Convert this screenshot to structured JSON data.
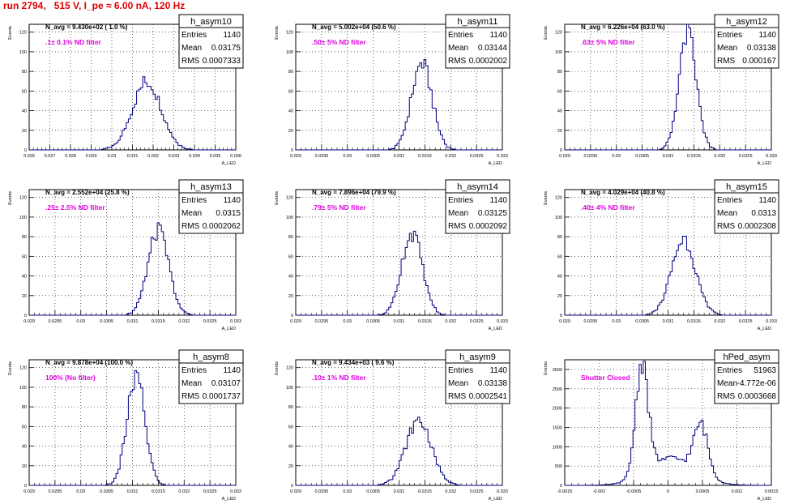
{
  "page_title": "run 2794,   515 V, I_pe ≈ 6.00 nA, 120 Hz",
  "colors": {
    "title": "#e00000",
    "histogram": "#000080",
    "annotation": "#e000e0",
    "grid": "#000000"
  },
  "chart_data": [
    {
      "type": "histogram",
      "name": "h_asym10",
      "stats": {
        "entries": "1140",
        "mean": "0.03175",
        "rms": "0.0007333"
      },
      "navg": "N_avg = 9.430e+02 ( 1.0 %)",
      "label": ".1± 0.1% ND filter",
      "xlabel": "A_LED",
      "ylabel": "Events",
      "xticks": [
        "0.026",
        "0.027",
        "0.028",
        "0.029",
        "0.03",
        "0.031",
        "0.032",
        "0.033",
        "0.034",
        "0.035",
        "0.036"
      ],
      "yticks": [
        "0",
        "20",
        "40",
        "60",
        "80",
        "100",
        "120"
      ],
      "xlim": [
        0.026,
        0.036
      ],
      "ylim": [
        0,
        128
      ],
      "peak": {
        "center": 0.0317,
        "sigma": 0.0007,
        "height": 70
      }
    },
    {
      "type": "histogram",
      "name": "h_asym11",
      "stats": {
        "entries": "1140",
        "mean": "0.03144",
        "rms": "0.0002002"
      },
      "navg": "N_avg = 5.002e+04 (50.6 %)",
      "label": ".50± 5% ND filter",
      "xlabel": "A_LED",
      "ylabel": "Events",
      "xticks": [
        "0.029",
        "0.0295",
        "0.03",
        "0.0305",
        "0.031",
        "0.0315",
        "0.032",
        "0.0325",
        "0.033"
      ],
      "yticks": [
        "0",
        "20",
        "40",
        "60",
        "80",
        "100",
        "120"
      ],
      "xlim": [
        0.029,
        0.033
      ],
      "ylim": [
        0,
        128
      ],
      "peak": {
        "center": 0.03144,
        "sigma": 0.0002,
        "height": 88
      }
    },
    {
      "type": "histogram",
      "name": "h_asym12",
      "stats": {
        "entries": "1140",
        "mean": "0.03138",
        "rms": "0.000167"
      },
      "navg": "N_avg = 6.226e+04 (63.0 %)",
      "label": ".63± 5% ND filter",
      "xlabel": "A_LED",
      "ylabel": "Events",
      "xticks": [
        "0.029",
        "0.0295",
        "0.03",
        "0.0305",
        "0.031",
        "0.0315",
        "0.032",
        "0.0325",
        "0.033"
      ],
      "yticks": [
        "0",
        "20",
        "40",
        "60",
        "80",
        "100",
        "120"
      ],
      "xlim": [
        0.029,
        0.033
      ],
      "ylim": [
        0,
        128
      ],
      "peak": {
        "center": 0.03138,
        "sigma": 0.000167,
        "height": 118
      }
    },
    {
      "type": "histogram",
      "name": "h_asym13",
      "stats": {
        "entries": "1140",
        "mean": "0.0315",
        "rms": "0.0002062"
      },
      "navg": "N_avg = 2.552e+04 (25.8 %)",
      "label": ".25± 2.5% ND filter",
      "xlabel": "A_LED",
      "ylabel": "Events",
      "xticks": [
        "0.029",
        "0.0295",
        "0.03",
        "0.0305",
        "0.031",
        "0.0315",
        "0.032",
        "0.0325",
        "0.033"
      ],
      "yticks": [
        "0",
        "20",
        "40",
        "60",
        "80",
        "100",
        "120"
      ],
      "xlim": [
        0.029,
        0.033
      ],
      "ylim": [
        0,
        128
      ],
      "peak": {
        "center": 0.0315,
        "sigma": 0.0002,
        "height": 86
      }
    },
    {
      "type": "histogram",
      "name": "h_asym14",
      "stats": {
        "entries": "1140",
        "mean": "0.03125",
        "rms": "0.0002092"
      },
      "navg": "N_avg = 7.896e+04 (79.9 %)",
      "label": ".79± 5% ND filter",
      "xlabel": "A_LED",
      "ylabel": "Events",
      "xticks": [
        "0.029",
        "0.0295",
        "0.03",
        "0.0305",
        "0.031",
        "0.0315",
        "0.032",
        "0.0325",
        "0.033"
      ],
      "yticks": [
        "0",
        "20",
        "40",
        "60",
        "80",
        "100",
        "120"
      ],
      "xlim": [
        0.029,
        0.033
      ],
      "ylim": [
        0,
        128
      ],
      "peak": {
        "center": 0.03125,
        "sigma": 0.0002,
        "height": 84
      }
    },
    {
      "type": "histogram",
      "name": "h_asym15",
      "stats": {
        "entries": "1140",
        "mean": "0.0313",
        "rms": "0.0002308"
      },
      "navg": "N_avg = 4.029e+04 (40.8 %)",
      "label": ".40± 4% ND filter",
      "xlabel": "A_LED",
      "ylabel": "Events",
      "xticks": [
        "0.029",
        "0.0295",
        "0.03",
        "0.0305",
        "0.031",
        "0.0315",
        "0.032",
        "0.0325",
        "0.033"
      ],
      "yticks": [
        "0",
        "20",
        "40",
        "60",
        "80",
        "100",
        "120"
      ],
      "xlim": [
        0.029,
        0.033
      ],
      "ylim": [
        0,
        128
      ],
      "peak": {
        "center": 0.0313,
        "sigma": 0.00023,
        "height": 78
      }
    },
    {
      "type": "histogram",
      "name": "h_asym8",
      "stats": {
        "entries": "1140",
        "mean": "0.03107",
        "rms": "0.0001737"
      },
      "navg": "N_avg = 9.878e+04 (100.0 %)",
      "label": "100% (No filter)",
      "xlabel": "A_LED",
      "ylabel": "Events",
      "xticks": [
        "0.029",
        "0.0295",
        "0.03",
        "0.0305",
        "0.031",
        "0.0315",
        "0.032",
        "0.0325",
        "0.033"
      ],
      "yticks": [
        "0",
        "20",
        "40",
        "60",
        "80",
        "100",
        "120"
      ],
      "xlim": [
        0.029,
        0.033
      ],
      "ylim": [
        0,
        128
      ],
      "peak": {
        "center": 0.03107,
        "sigma": 0.000174,
        "height": 110
      }
    },
    {
      "type": "histogram",
      "name": "h_asym9",
      "stats": {
        "entries": "1140",
        "mean": "0.03138",
        "rms": "0.0002541"
      },
      "navg": "N_avg = 9.434e+03 ( 9.6 %)",
      "label": ".10± 1% ND filter",
      "xlabel": "A_LED",
      "ylabel": "Events",
      "xticks": [
        "0.029",
        "0.0295",
        "0.03",
        "0.0305",
        "0.031",
        "0.0315",
        "0.032",
        "0.0325",
        "0.033"
      ],
      "yticks": [
        "0",
        "20",
        "40",
        "60",
        "80",
        "100",
        "120"
      ],
      "xlim": [
        0.029,
        0.033
      ],
      "ylim": [
        0,
        128
      ],
      "peak": {
        "center": 0.03138,
        "sigma": 0.00025,
        "height": 66
      }
    },
    {
      "type": "histogram",
      "name": "hPed_asym",
      "stats": {
        "entries": "51963",
        "mean": "-4.772e-06",
        "rms": "0.0003668"
      },
      "navg": "",
      "label": "Shutter Closed",
      "xlabel": "A_LED",
      "ylabel": "Events",
      "xticks": [
        "-0.0015",
        "-0.001",
        "-0.0005",
        "0",
        "0.0005",
        "0.001",
        "0.0015"
      ],
      "yticks": [
        "0",
        "500",
        "1000",
        "1500",
        "2000",
        "2500",
        "3000"
      ],
      "xlim": [
        -0.0015,
        0.0015
      ],
      "ylim": [
        0,
        3250
      ],
      "peaks": [
        {
          "center": -0.00038,
          "sigma": 9e-05,
          "height": 2900
        },
        {
          "center": 0.00048,
          "sigma": 0.0001,
          "height": 1280
        }
      ],
      "baseline": 700
    }
  ]
}
